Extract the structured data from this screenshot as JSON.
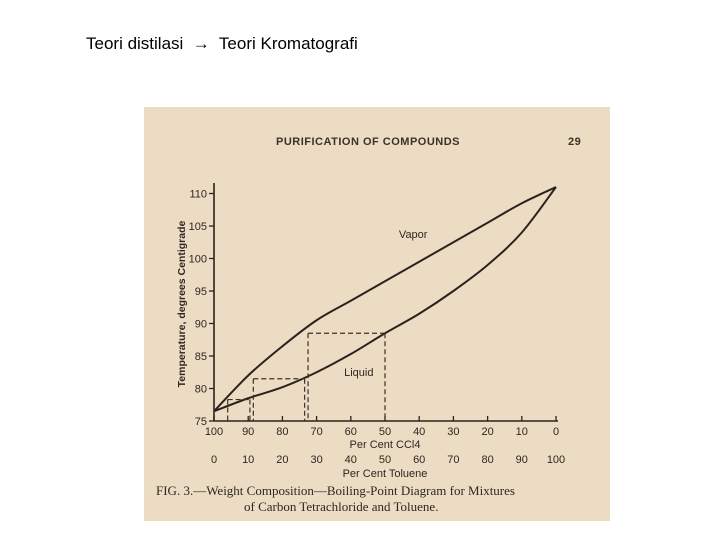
{
  "slide": {
    "title_left": "Teori distilasi",
    "arrow": "→",
    "title_right": "Teori Kromatografi"
  },
  "page_header": {
    "title": "PURIFICATION OF COMPOUNDS",
    "page_number": "29"
  },
  "caption": {
    "line1": "FIG. 3.—Weight Composition—Boiling-Point Diagram for Mixtures",
    "line2": "of Carbon Tetrachloride and Toluene."
  },
  "chart_data": {
    "type": "line",
    "ylabel": "Temperature, degrees Centigrade",
    "xlabel_top": "Per Cent CCl4",
    "xlabel_bottom": "Per Cent Toluene",
    "x_ticks_ccl4": [
      "100",
      "90",
      "80",
      "70",
      "60",
      "50",
      "40",
      "30",
      "20",
      "10",
      "0"
    ],
    "x_ticks_toluene": [
      "0",
      "10",
      "20",
      "30",
      "40",
      "50",
      "60",
      "70",
      "80",
      "90",
      "100"
    ],
    "y_ticks": [
      "75",
      "80",
      "85",
      "90",
      "95",
      "100",
      "105",
      "110"
    ],
    "ylim": [
      75,
      111
    ],
    "xlim": [
      0,
      100
    ],
    "series": [
      {
        "name": "Vapor",
        "x_toluene": [
          0,
          10,
          20,
          30,
          40,
          50,
          60,
          70,
          80,
          90,
          100
        ],
        "y": [
          76.5,
          82,
          86.5,
          90.5,
          93.5,
          96.5,
          99.5,
          102.5,
          105.5,
          108.5,
          111
        ]
      },
      {
        "name": "Liquid",
        "x_toluene": [
          0,
          10,
          20,
          30,
          40,
          50,
          60,
          70,
          80,
          90,
          100
        ],
        "y": [
          76.5,
          78.5,
          80.2,
          82.5,
          85.3,
          88.5,
          91.5,
          95.0,
          99.0,
          104.0,
          111
        ]
      }
    ],
    "tie_lines": [
      {
        "x_vapor": 27.5,
        "x_liquid": 50,
        "y": 88.5
      },
      {
        "x_vapor": 11.5,
        "x_liquid": 26.5,
        "y": 81.5
      },
      {
        "x_vapor": 4,
        "x_liquid": 10.5,
        "y": 78.3
      }
    ]
  }
}
